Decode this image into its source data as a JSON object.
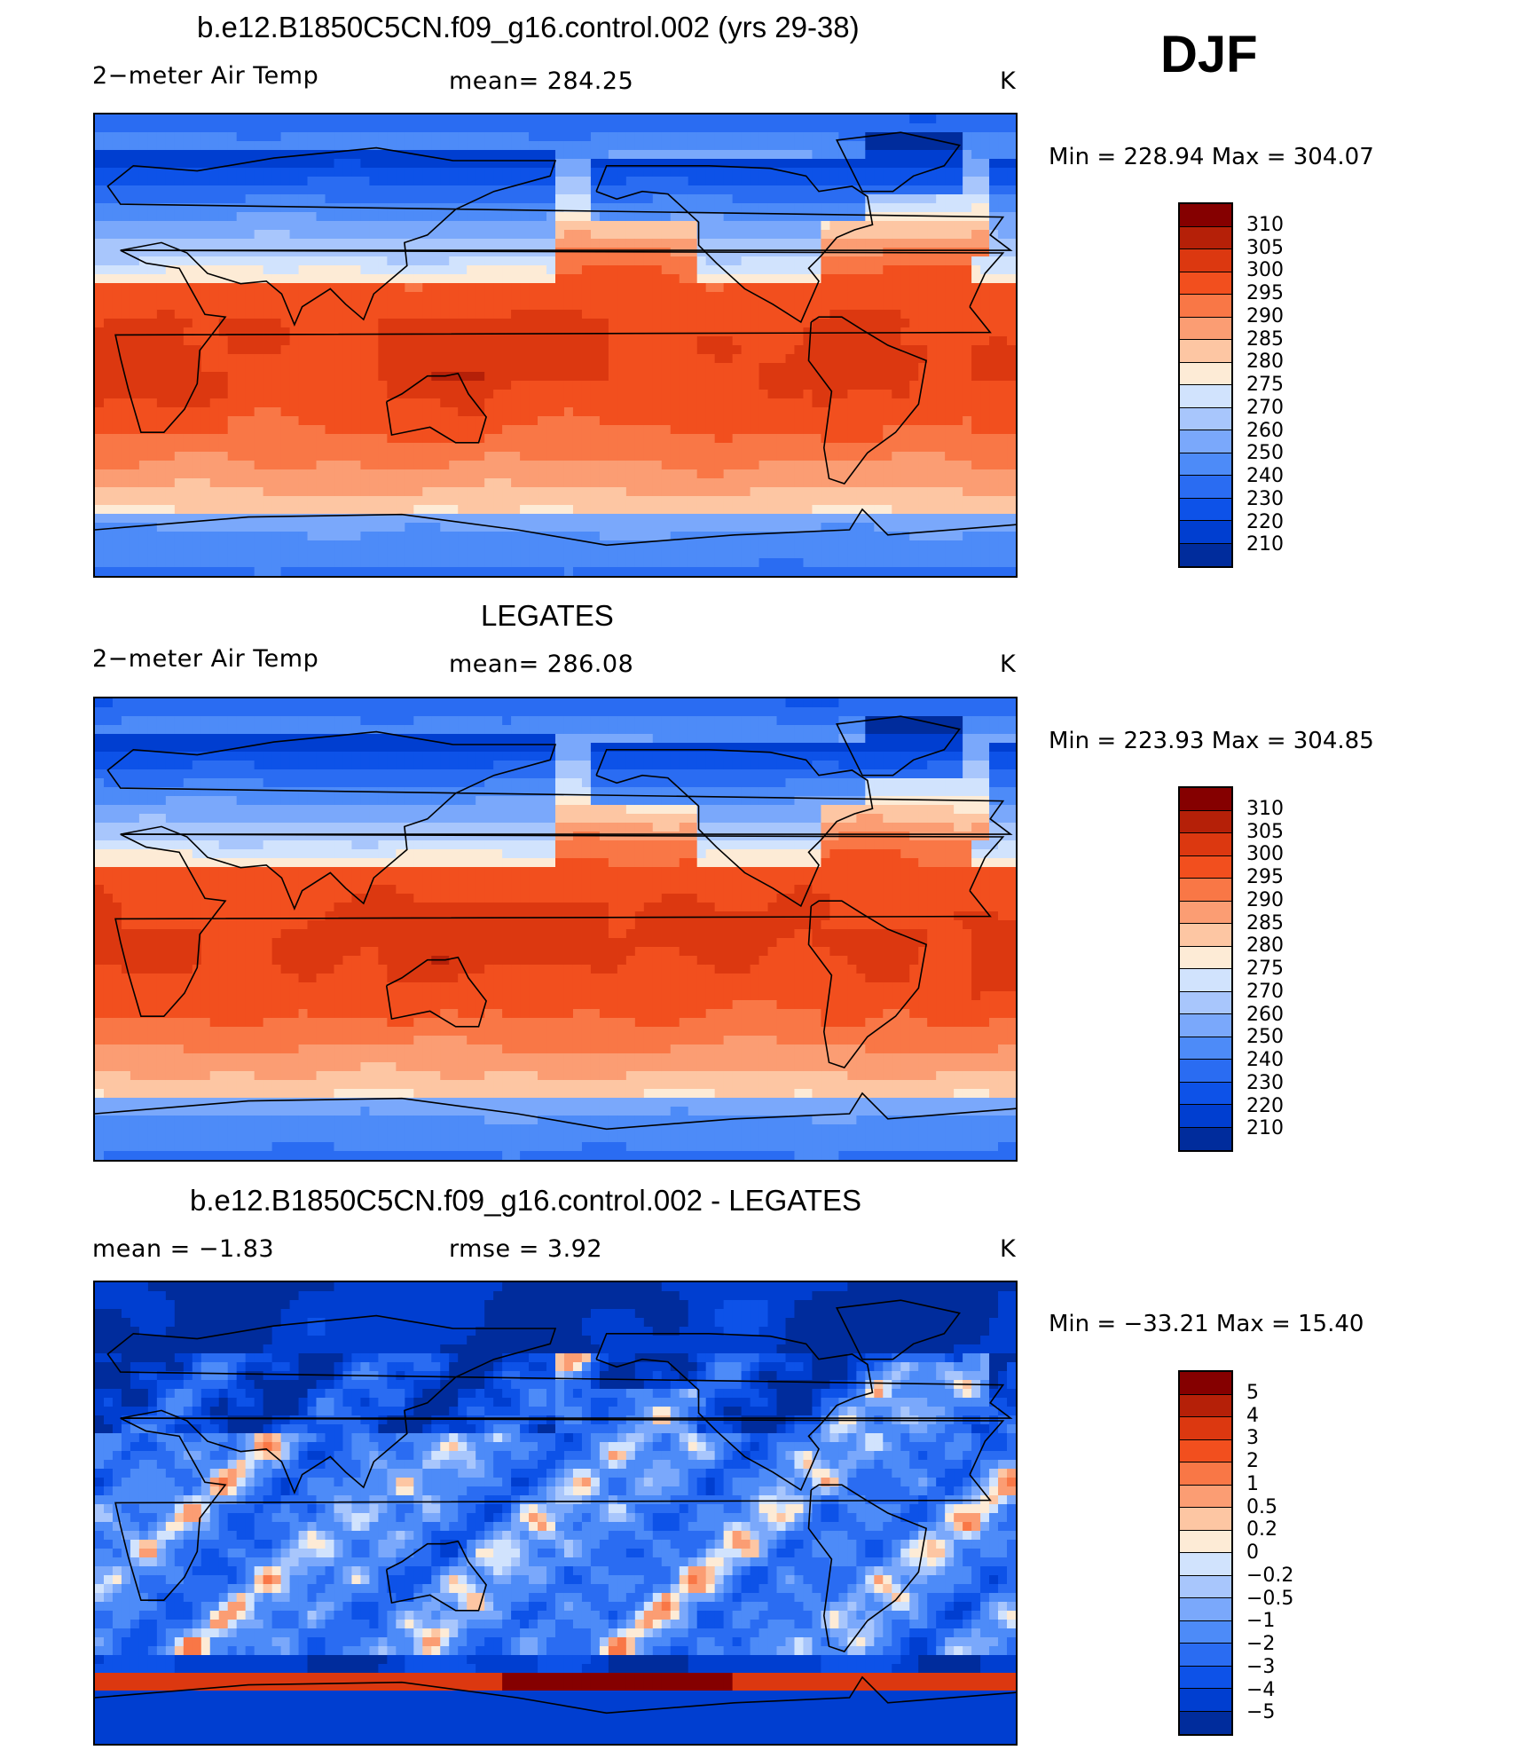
{
  "header": {
    "season": "DJF"
  },
  "panels": [
    {
      "title": "b.e12.B1850C5CN.f09_g16.control.002 (yrs 29-38)",
      "left_label": "2−meter Air Temp",
      "center_label": "mean=  284.25",
      "units": "K",
      "minmax": "Min  =  228.94  Max  =  304.07",
      "colorbar_labels": [
        "310",
        "305",
        "300",
        "295",
        "290",
        "285",
        "280",
        "275",
        "270",
        "260",
        "250",
        "240",
        "230",
        "220",
        "210"
      ],
      "field": "model"
    },
    {
      "title": "LEGATES",
      "left_label": "2−meter Air Temp",
      "center_label": "mean=  286.08",
      "units": "K",
      "minmax": "Min  =  223.93  Max  =  304.85",
      "colorbar_labels": [
        "310",
        "305",
        "300",
        "295",
        "290",
        "285",
        "280",
        "275",
        "270",
        "260",
        "250",
        "240",
        "230",
        "220",
        "210"
      ],
      "field": "obs"
    },
    {
      "title": "b.e12.B1850C5CN.f09_g16.control.002 - LEGATES",
      "left_label": "mean  =    −1.83",
      "center_label": "rmse  =     3.92",
      "units": "K",
      "minmax": "Min  =  −33.21  Max  =    15.40",
      "colorbar_labels": [
        "5",
        "4",
        "3",
        "2",
        "1",
        "0.5",
        "0.2",
        "0",
        "−0.2",
        "−0.5",
        "−1",
        "−2",
        "−3",
        "−4",
        "−5"
      ],
      "field": "diff"
    }
  ],
  "colors": {
    "palette": [
      "#ffffff",
      "#08006a",
      "#002c9c",
      "#003ed0",
      "#0d52e8",
      "#2a6cf2",
      "#4d8bf8",
      "#7aa8fb",
      "#a8c6fc",
      "#d1e3fd",
      "#fdebd6",
      "#fdc6a3",
      "#fb9d73",
      "#f97746",
      "#f24f1e",
      "#dc3810",
      "#b52008",
      "#850000"
    ]
  }
}
